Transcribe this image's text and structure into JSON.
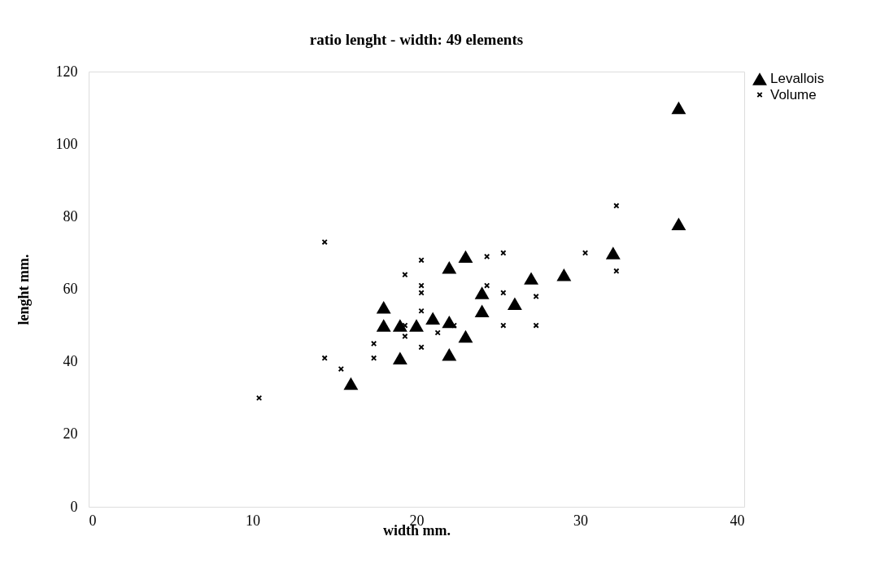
{
  "chart_data": {
    "type": "scatter",
    "title": "ratio lenght - width: 49 elements",
    "xlabel": "width mm.",
    "ylabel": "lenght mm.",
    "xlim": [
      0,
      40
    ],
    "xticks": [
      0,
      10,
      20,
      30,
      40
    ],
    "ylim": [
      0,
      120
    ],
    "yticks": [
      0,
      20,
      40,
      60,
      80,
      100,
      120
    ],
    "grid": false,
    "legend": "right",
    "series": [
      {
        "name": "Levallois",
        "color": "#000000",
        "marker": "triangle",
        "x": [
          16,
          18,
          18,
          19,
          20,
          21,
          22,
          19,
          22,
          22,
          23,
          24,
          24,
          26,
          27,
          29,
          32,
          36,
          36,
          23
        ],
        "values": [
          34,
          55,
          50,
          50,
          50,
          52,
          51,
          41,
          42,
          66,
          69,
          59,
          54,
          56,
          63,
          64,
          70,
          78,
          110,
          47
        ]
      },
      {
        "name": "Volume",
        "color": "#000000",
        "marker": "cross",
        "x": [
          14.4,
          20.3,
          19.3,
          20.3,
          20.3,
          20.3,
          19.3,
          19.3,
          20.3,
          17.4,
          17.4,
          14.4,
          15.4,
          10.4,
          21.3,
          22.3,
          24.3,
          25.3,
          24.3,
          25.3,
          27.3,
          25.3,
          27.3,
          30.3,
          32.2,
          32.2
        ],
        "values": [
          73,
          68,
          64,
          61,
          59,
          54,
          50,
          47,
          44,
          45,
          41,
          41,
          38,
          30,
          48,
          50,
          69,
          70,
          61,
          59,
          58,
          50,
          50,
          70,
          65,
          83
        ]
      }
    ]
  }
}
